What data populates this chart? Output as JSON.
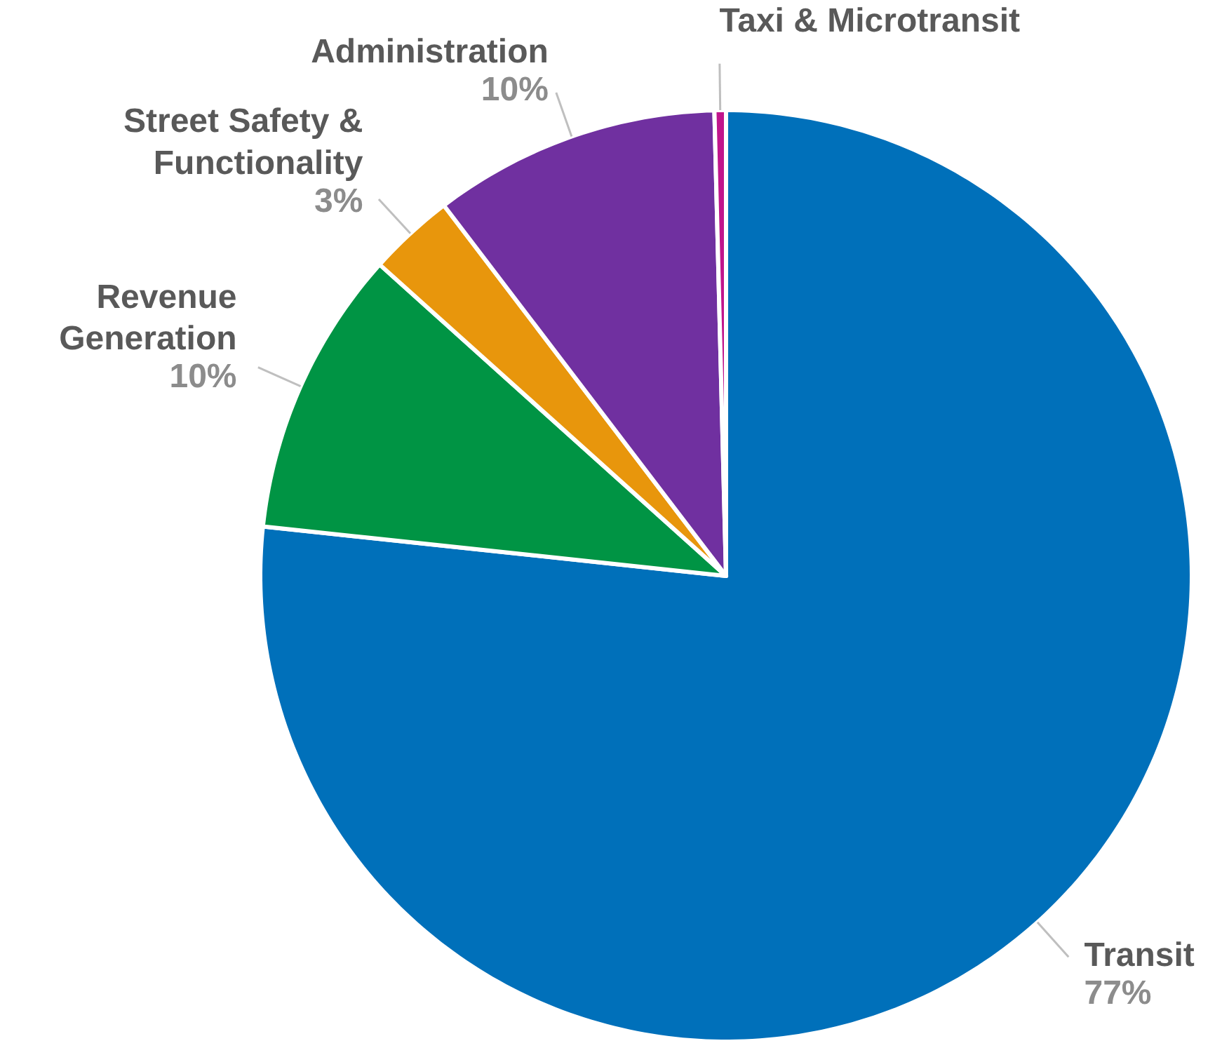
{
  "chart_data": {
    "type": "pie",
    "categories": [
      "Transit",
      "Revenue Generation",
      "Street Safety & Functionality",
      "Administration",
      "Taxi & Microtransit"
    ],
    "values": [
      77,
      10,
      3,
      10,
      0.4
    ],
    "colors": [
      "#0070ba",
      "#009444",
      "#e8960c",
      "#7030a0",
      "#c0158c"
    ],
    "value_labels": [
      "77%",
      "10%",
      "3%",
      "10%",
      null
    ]
  }
}
